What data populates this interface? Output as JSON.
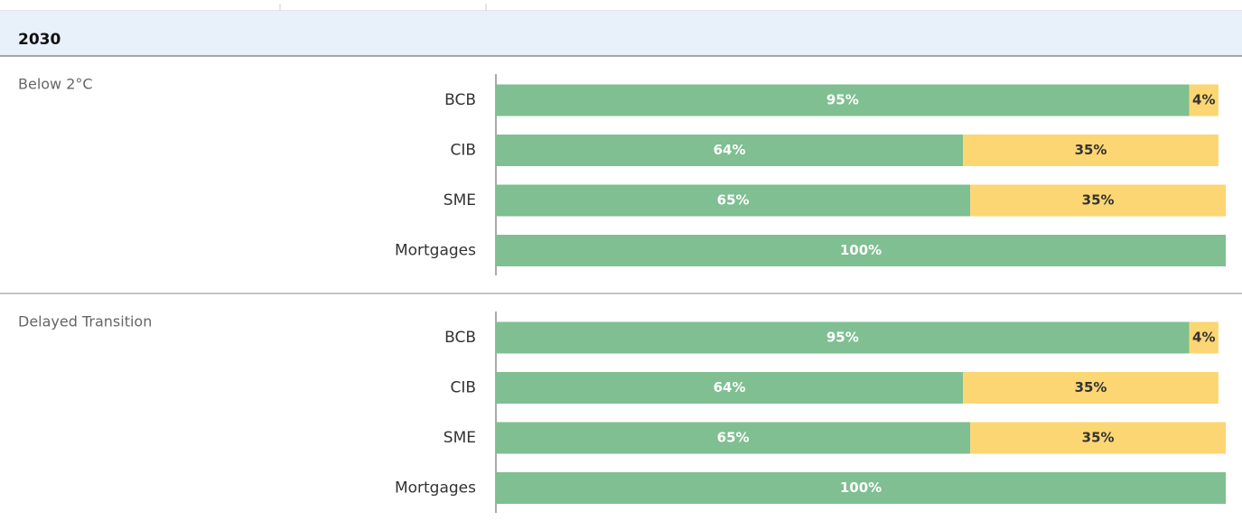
{
  "header": {
    "title": "2030"
  },
  "chart_data": [
    {
      "type": "bar",
      "orientation": "horizontal",
      "stacked": true,
      "title": "Below 2°C",
      "categories": [
        "BCB",
        "CIB",
        "SME",
        "Mortgages"
      ],
      "xlim": [
        0,
        100
      ],
      "series": [
        {
          "color": "#7fbf91",
          "values": [
            95,
            64,
            65,
            100
          ],
          "value_labels": [
            "95%",
            "64%",
            "65%",
            "100%"
          ]
        },
        {
          "color": "#fcd672",
          "values": [
            4,
            35,
            35,
            null
          ],
          "value_labels": [
            "4%",
            "35%",
            "35%",
            null
          ]
        }
      ]
    },
    {
      "type": "bar",
      "orientation": "horizontal",
      "stacked": true,
      "title": "Delayed Transition",
      "categories": [
        "BCB",
        "CIB",
        "SME",
        "Mortgages"
      ],
      "xlim": [
        0,
        100
      ],
      "series": [
        {
          "color": "#7fbf91",
          "values": [
            95,
            64,
            65,
            100
          ],
          "value_labels": [
            "95%",
            "64%",
            "65%",
            "100%"
          ]
        },
        {
          "color": "#fcd672",
          "values": [
            4,
            35,
            35,
            null
          ],
          "value_labels": [
            "4%",
            "35%",
            "35%",
            null
          ]
        }
      ]
    }
  ]
}
